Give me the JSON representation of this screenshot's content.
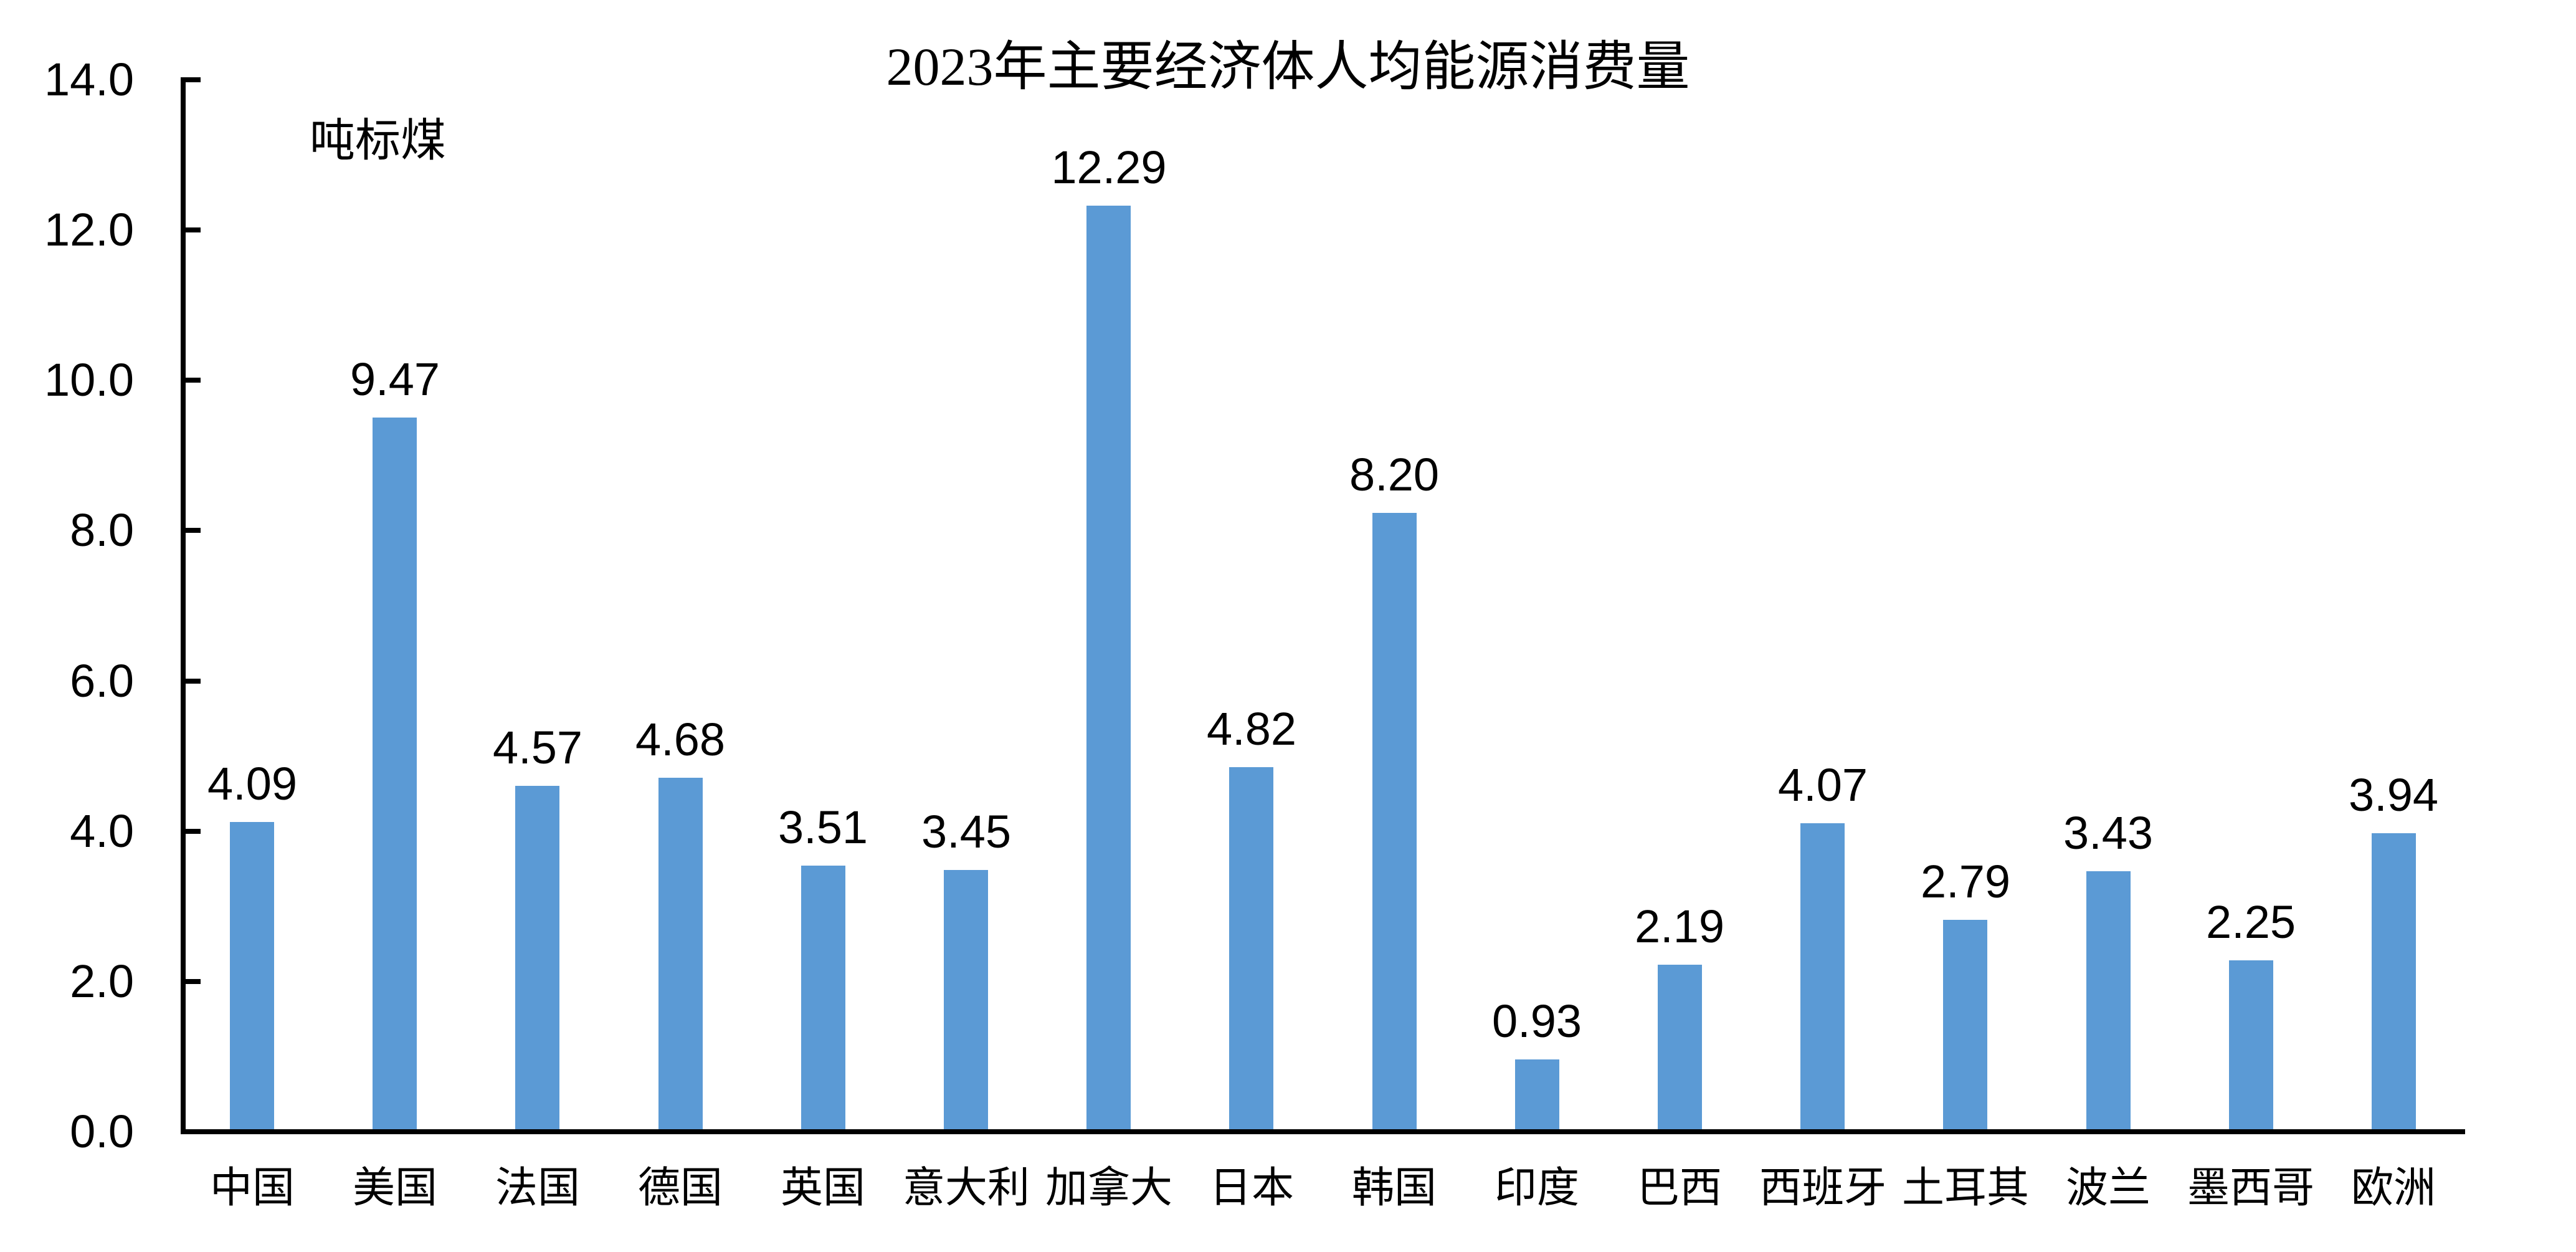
{
  "chart_data": {
    "type": "bar",
    "title": "2023年主要经济体人均能源消费量",
    "unit_label": "吨标煤",
    "categories": [
      "中国",
      "美国",
      "法国",
      "德国",
      "英国",
      "意大利",
      "加拿大",
      "日本",
      "韩国",
      "印度",
      "巴西",
      "西班牙",
      "土耳其",
      "波兰",
      "墨西哥",
      "欧洲"
    ],
    "values": [
      4.09,
      9.47,
      4.57,
      4.68,
      3.51,
      3.45,
      12.29,
      4.82,
      8.2,
      0.93,
      2.19,
      4.07,
      2.79,
      3.43,
      2.25,
      3.94
    ],
    "value_labels": [
      "4.09",
      "9.47",
      "4.57",
      "4.68",
      "3.51",
      "3.45",
      "12.29",
      "4.82",
      "8.20",
      "0.93",
      "2.19",
      "4.07",
      "2.79",
      "3.43",
      "2.25",
      "3.94"
    ],
    "xlabel": "",
    "ylabel": "",
    "ylim": [
      0,
      14
    ],
    "y_axis": {
      "ticks": [
        {
          "value": 14,
          "label": "14.0"
        },
        {
          "value": 12,
          "label": "12.0"
        },
        {
          "value": 10,
          "label": "10.0"
        },
        {
          "value": 8,
          "label": "8.0"
        },
        {
          "value": 6,
          "label": "6.0"
        },
        {
          "value": 4,
          "label": "4.0"
        },
        {
          "value": 2,
          "label": "2.0"
        },
        {
          "value": 0,
          "label": "0.0"
        }
      ]
    },
    "grid": false,
    "legend": "none",
    "bar_color": "#5B9AD5",
    "axis_color": "#000000",
    "text_color": "#000000",
    "background_color": "#FFFFFF"
  }
}
